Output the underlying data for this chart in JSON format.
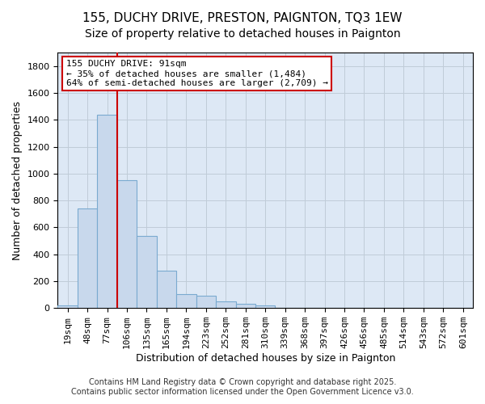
{
  "title": "155, DUCHY DRIVE, PRESTON, PAIGNTON, TQ3 1EW",
  "subtitle": "Size of property relative to detached houses in Paignton",
  "xlabel": "Distribution of detached houses by size in Paignton",
  "ylabel": "Number of detached properties",
  "footer1": "Contains HM Land Registry data © Crown copyright and database right 2025.",
  "footer2": "Contains public sector information licensed under the Open Government Licence v3.0.",
  "bar_labels": [
    "19sqm",
    "48sqm",
    "77sqm",
    "106sqm",
    "135sqm",
    "165sqm",
    "194sqm",
    "223sqm",
    "252sqm",
    "281sqm",
    "310sqm",
    "339sqm",
    "368sqm",
    "397sqm",
    "426sqm",
    "456sqm",
    "485sqm",
    "514sqm",
    "543sqm",
    "572sqm",
    "601sqm"
  ],
  "bar_values": [
    20,
    740,
    1440,
    950,
    535,
    275,
    105,
    90,
    50,
    30,
    20,
    0,
    0,
    0,
    0,
    0,
    0,
    0,
    0,
    0,
    0
  ],
  "bar_color": "#c8d8ec",
  "bar_edge_color": "#7aaad0",
  "red_line_color": "#cc0000",
  "red_line_bin": 2,
  "annotation_line1": "155 DUCHY DRIVE: 91sqm",
  "annotation_line2": "← 35% of detached houses are smaller (1,484)",
  "annotation_line3": "64% of semi-detached houses are larger (2,709) →",
  "annotation_box_facecolor": "#ffffff",
  "annotation_box_edgecolor": "#cc0000",
  "ylim": [
    0,
    1900
  ],
  "yticks": [
    0,
    200,
    400,
    600,
    800,
    1000,
    1200,
    1400,
    1600,
    1800
  ],
  "background_color": "#ffffff",
  "plot_bg_color": "#dde8f5",
  "grid_color": "#c0ccd8",
  "title_fontsize": 11,
  "axis_label_fontsize": 9,
  "tick_fontsize": 8,
  "annotation_fontsize": 8,
  "footer_fontsize": 7
}
